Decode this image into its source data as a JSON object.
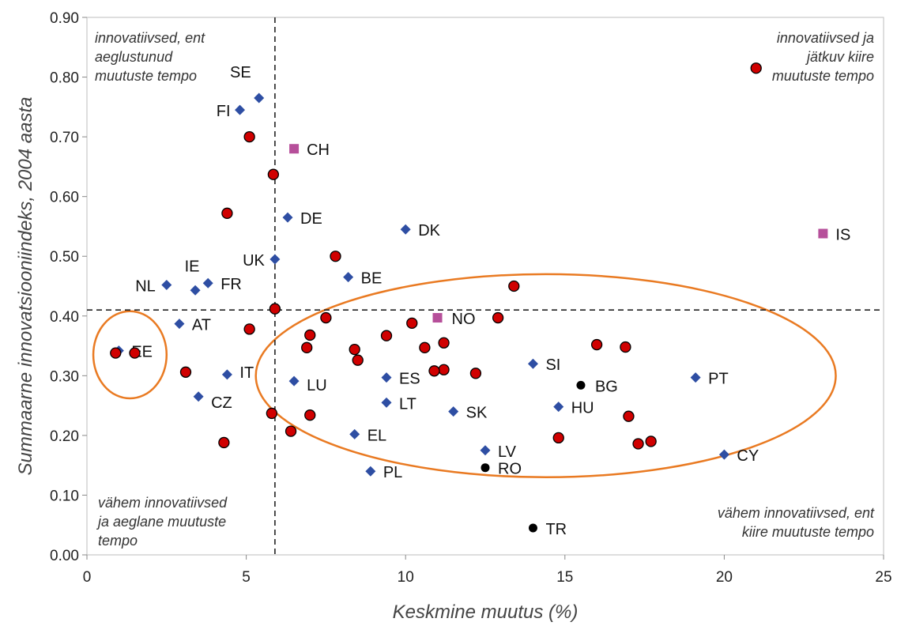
{
  "chart_data": {
    "type": "scatter",
    "xlabel": "Keskmine muutus (%)",
    "ylabel": "Summaarne innovatsiooniindeks, 2004 aasta",
    "xlim": [
      0,
      25
    ],
    "ylim": [
      0,
      0.9
    ],
    "x_ticks": [
      "0",
      "5",
      "10",
      "15",
      "20",
      "25"
    ],
    "y_ticks": [
      "0.00",
      "0.10",
      "0.20",
      "0.30",
      "0.40",
      "0.50",
      "0.60",
      "0.70",
      "0.80",
      "0.90"
    ],
    "grid": false,
    "reference_lines": {
      "x": 5.9,
      "y": 0.41
    },
    "quadrant_labels": [
      {
        "lines": [
          "innovatiivsed, ent",
          "aeglustunud",
          "muutuste tempo"
        ],
        "position": "top-left"
      },
      {
        "lines": [
          "innovatiivsed ja",
          "jätkuv kiire",
          "muutuste tempo"
        ],
        "position": "top-right"
      },
      {
        "lines": [
          "vähem innovatiivsed",
          "ja aeglane muutuste",
          "tempo"
        ],
        "position": "bottom-left"
      },
      {
        "lines": [
          "vähem innovatiivsed, ent",
          "kiire muutuste tempo"
        ],
        "position": "bottom-right"
      }
    ],
    "ellipses": [
      {
        "cx": 1.35,
        "cy": 0.335,
        "rx": 1.15,
        "ry": 0.073,
        "color": "#e97a22"
      },
      {
        "cx": 14.4,
        "cy": 0.3,
        "rx": 9.1,
        "ry": 0.17,
        "color": "#e97a22"
      }
    ],
    "colors": {
      "diamond": "#2e4ea3",
      "circle": "#d00000",
      "square": "#b64f9a",
      "dot": "#000000",
      "dashed": "#222222"
    },
    "series": [
      {
        "marker": "diamond",
        "points": [
          {
            "label": "SE",
            "x": 5.4,
            "y": 0.765
          },
          {
            "label": "FI",
            "x": 4.8,
            "y": 0.745
          },
          {
            "label": "DE",
            "x": 6.3,
            "y": 0.565
          },
          {
            "label": "DK",
            "x": 10.0,
            "y": 0.545
          },
          {
            "label": "UK",
            "x": 5.9,
            "y": 0.495
          },
          {
            "label": "BE",
            "x": 8.2,
            "y": 0.465
          },
          {
            "label": "NL",
            "x": 2.5,
            "y": 0.452
          },
          {
            "label": "FR",
            "x": 3.8,
            "y": 0.455
          },
          {
            "label": "IE",
            "x": 3.4,
            "y": 0.443
          },
          {
            "label": "AT",
            "x": 2.9,
            "y": 0.387
          },
          {
            "label": "EE",
            "x": 1.0,
            "y": 0.342
          },
          {
            "label": "IT",
            "x": 4.4,
            "y": 0.302
          },
          {
            "label": "CZ",
            "x": 3.5,
            "y": 0.265
          },
          {
            "label": "LU",
            "x": 6.5,
            "y": 0.291
          },
          {
            "label": "ES",
            "x": 9.4,
            "y": 0.297
          },
          {
            "label": "LT",
            "x": 9.4,
            "y": 0.255
          },
          {
            "label": "SK",
            "x": 11.5,
            "y": 0.24
          },
          {
            "label": "SI",
            "x": 14.0,
            "y": 0.32
          },
          {
            "label": "HU",
            "x": 14.8,
            "y": 0.248
          },
          {
            "label": "PT",
            "x": 19.1,
            "y": 0.297
          },
          {
            "label": "EL",
            "x": 8.4,
            "y": 0.202
          },
          {
            "label": "LV",
            "x": 12.5,
            "y": 0.175
          },
          {
            "label": "PL",
            "x": 8.9,
            "y": 0.14
          },
          {
            "label": "CY",
            "x": 20.0,
            "y": 0.168
          }
        ]
      },
      {
        "marker": "square",
        "points": [
          {
            "label": "CH",
            "x": 6.5,
            "y": 0.68
          },
          {
            "label": "IS",
            "x": 23.1,
            "y": 0.538
          },
          {
            "label": "NO",
            "x": 11.0,
            "y": 0.397
          }
        ]
      },
      {
        "marker": "dot",
        "points": [
          {
            "label": "BG",
            "x": 15.5,
            "y": 0.284
          },
          {
            "label": "RO",
            "x": 12.5,
            "y": 0.146
          },
          {
            "label": "TR",
            "x": 14.0,
            "y": 0.045
          }
        ]
      },
      {
        "marker": "circle",
        "points": [
          {
            "x": 21.0,
            "y": 0.815
          },
          {
            "x": 5.1,
            "y": 0.7
          },
          {
            "x": 5.85,
            "y": 0.637
          },
          {
            "x": 4.4,
            "y": 0.572
          },
          {
            "x": 7.8,
            "y": 0.5
          },
          {
            "x": 13.4,
            "y": 0.45
          },
          {
            "x": 5.9,
            "y": 0.412
          },
          {
            "x": 7.5,
            "y": 0.397
          },
          {
            "x": 12.9,
            "y": 0.397
          },
          {
            "x": 10.2,
            "y": 0.388
          },
          {
            "x": 5.1,
            "y": 0.378
          },
          {
            "x": 7.0,
            "y": 0.368
          },
          {
            "x": 9.4,
            "y": 0.367
          },
          {
            "x": 11.2,
            "y": 0.355
          },
          {
            "x": 16.0,
            "y": 0.352
          },
          {
            "x": 6.9,
            "y": 0.347
          },
          {
            "x": 10.6,
            "y": 0.347
          },
          {
            "x": 16.9,
            "y": 0.348
          },
          {
            "x": 8.4,
            "y": 0.344
          },
          {
            "x": 0.9,
            "y": 0.338
          },
          {
            "x": 1.5,
            "y": 0.338
          },
          {
            "x": 8.5,
            "y": 0.326
          },
          {
            "x": 11.2,
            "y": 0.31
          },
          {
            "x": 10.9,
            "y": 0.308
          },
          {
            "x": 3.1,
            "y": 0.306
          },
          {
            "x": 12.2,
            "y": 0.304
          },
          {
            "x": 5.8,
            "y": 0.237
          },
          {
            "x": 7.0,
            "y": 0.234
          },
          {
            "x": 17.0,
            "y": 0.232
          },
          {
            "x": 6.4,
            "y": 0.207
          },
          {
            "x": 14.8,
            "y": 0.196
          },
          {
            "x": 17.7,
            "y": 0.19
          },
          {
            "x": 17.3,
            "y": 0.186
          },
          {
            "x": 4.3,
            "y": 0.188
          }
        ]
      }
    ]
  }
}
